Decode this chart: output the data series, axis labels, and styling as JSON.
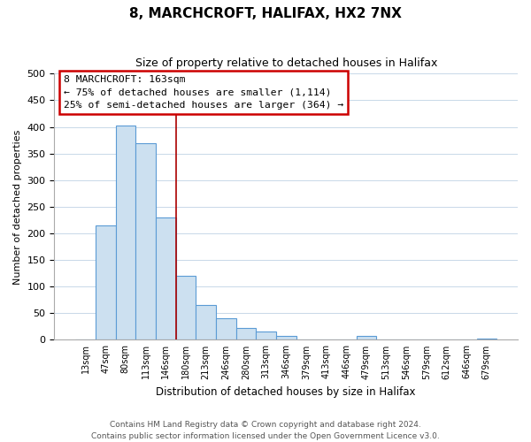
{
  "title": "8, MARCHCROFT, HALIFAX, HX2 7NX",
  "subtitle": "Size of property relative to detached houses in Halifax",
  "xlabel": "Distribution of detached houses by size in Halifax",
  "ylabel": "Number of detached properties",
  "bar_labels": [
    "13sqm",
    "47sqm",
    "80sqm",
    "113sqm",
    "146sqm",
    "180sqm",
    "213sqm",
    "246sqm",
    "280sqm",
    "313sqm",
    "346sqm",
    "379sqm",
    "413sqm",
    "446sqm",
    "479sqm",
    "513sqm",
    "546sqm",
    "579sqm",
    "612sqm",
    "646sqm",
    "679sqm"
  ],
  "bar_values": [
    0,
    215,
    403,
    370,
    230,
    120,
    65,
    40,
    22,
    15,
    8,
    0,
    0,
    0,
    8,
    0,
    0,
    0,
    0,
    0,
    3
  ],
  "bar_color": "#cce0f0",
  "bar_edge_color": "#5b9bd5",
  "bar_edge_width": 0.8,
  "vline_x_index": 4.5,
  "vline_color": "#aa0000",
  "ylim": [
    0,
    500
  ],
  "yticks": [
    0,
    50,
    100,
    150,
    200,
    250,
    300,
    350,
    400,
    450,
    500
  ],
  "annotation_title": "8 MARCHCROFT: 163sqm",
  "annotation_line1": "← 75% of detached houses are smaller (1,114)",
  "annotation_line2": "25% of semi-detached houses are larger (364) →",
  "annotation_box_color": "#cc0000",
  "footer_line1": "Contains HM Land Registry data © Crown copyright and database right 2024.",
  "footer_line2": "Contains public sector information licensed under the Open Government Licence v3.0.",
  "background_color": "#ffffff",
  "grid_color": "#c8d8e8"
}
